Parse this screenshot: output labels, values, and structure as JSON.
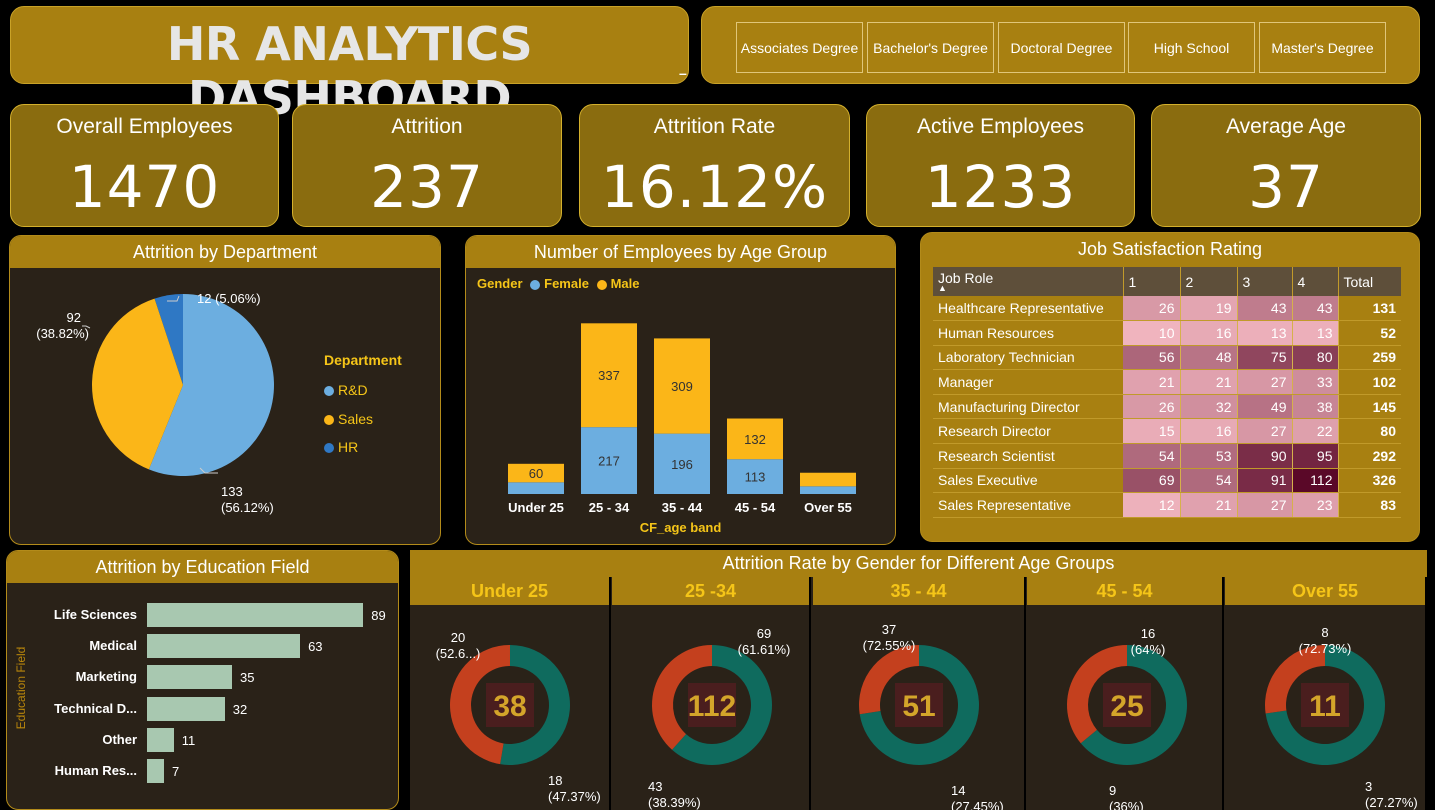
{
  "title": "HR ANALYTICS DASHBOARD",
  "title_mark": "–",
  "education_slicer": [
    "Associates Degree",
    "Bachelor's Degree",
    "Doctoral Degree",
    "High School",
    "Master's Degree"
  ],
  "kpis": [
    {
      "label": "Overall Employees",
      "value": "1470"
    },
    {
      "label": "Attrition",
      "value": "237"
    },
    {
      "label": "Attrition Rate",
      "value": "16.12%"
    },
    {
      "label": "Active Employees",
      "value": "1233"
    },
    {
      "label": "Average Age",
      "value": "37"
    }
  ],
  "colors": {
    "gold": "#a88011",
    "female": "#6caee0",
    "male": "#fbb618",
    "hr": "#2f78c4",
    "teal": "#0f6b5e",
    "rust": "#c4401e",
    "edu_bar": "#a8c8b0"
  },
  "chart_data": [
    {
      "type": "pie",
      "title": "Attrition by Department",
      "legend_title": "Department",
      "labels": [
        "R&D",
        "Sales",
        "HR"
      ],
      "values": [
        133,
        92,
        12
      ],
      "data_labels": [
        [
          "133",
          "(56.12%)"
        ],
        [
          "92",
          "(38.82%)"
        ],
        [
          "12 (5.06%)"
        ]
      ]
    },
    {
      "type": "bar",
      "stacked": true,
      "title": "Number of Employees by Age Group",
      "legend_title": "Gender",
      "xlabel": "CF_age band",
      "categories": [
        "Under 25",
        "25 - 34",
        "35 - 44",
        "45 - 54",
        "Over 55"
      ],
      "series": [
        {
          "name": "Female",
          "values": [
            38,
            217,
            196,
            113,
            25
          ]
        },
        {
          "name": "Male",
          "values": [
            60,
            337,
            309,
            132,
            44
          ]
        }
      ],
      "data_labels": {
        "Female": [
          "",
          "217",
          "196",
          "113",
          ""
        ],
        "Male": [
          "60",
          "337",
          "309",
          "132",
          ""
        ]
      },
      "ylim": [
        0,
        600
      ]
    },
    {
      "type": "table",
      "title": "Job Satisfaction Rating",
      "columns": [
        "Job Role",
        "1",
        "2",
        "3",
        "4",
        "Total"
      ],
      "rows": [
        [
          "Healthcare Representative",
          26,
          19,
          43,
          43,
          131
        ],
        [
          "Human Resources",
          10,
          16,
          13,
          13,
          52
        ],
        [
          "Laboratory Technician",
          56,
          48,
          75,
          80,
          259
        ],
        [
          "Manager",
          21,
          21,
          27,
          33,
          102
        ],
        [
          "Manufacturing Director",
          26,
          32,
          49,
          38,
          145
        ],
        [
          "Research Director",
          15,
          16,
          27,
          22,
          80
        ],
        [
          "Research Scientist",
          54,
          53,
          90,
          95,
          292
        ],
        [
          "Sales Executive",
          69,
          54,
          91,
          112,
          326
        ],
        [
          "Sales Representative",
          12,
          21,
          27,
          23,
          83
        ]
      ]
    },
    {
      "type": "bar",
      "orientation": "horizontal",
      "title": "Attrition by Education Field",
      "ylabel": "Education Field",
      "categories": [
        "Life Sciences",
        "Medical",
        "Marketing",
        "Technical D...",
        "Other",
        "Human Res..."
      ],
      "values": [
        89,
        63,
        35,
        32,
        11,
        7
      ],
      "xlim": [
        0,
        100
      ]
    },
    {
      "type": "pie",
      "donut": true,
      "title": "Attrition Rate by Gender for Different Age Groups",
      "groups": [
        {
          "label": "Under 25",
          "total": "38",
          "male": 20,
          "female": 18,
          "male_label": [
            "20",
            "(52.6...)"
          ],
          "female_label": [
            "18",
            "(47.37%)"
          ]
        },
        {
          "label": "25 -34",
          "total": "112",
          "male": 69,
          "female": 43,
          "male_label": [
            "69",
            "(61.61%)"
          ],
          "female_label": [
            "43",
            "(38.39%)"
          ]
        },
        {
          "label": "35 - 44",
          "total": "51",
          "male": 37,
          "female": 14,
          "male_label": [
            "37",
            "(72.55%)"
          ],
          "female_label": [
            "14",
            "(27.45%)"
          ]
        },
        {
          "label": "45 - 54",
          "total": "25",
          "male": 16,
          "female": 9,
          "male_label": [
            "16",
            "(64%)"
          ],
          "female_label": [
            "9",
            "(36%)"
          ]
        },
        {
          "label": "Over 55",
          "total": "11",
          "male": 8,
          "female": 3,
          "male_label": [
            "8",
            "(72.73%)"
          ],
          "female_label": [
            "3",
            "(27.27%)"
          ]
        }
      ]
    }
  ]
}
